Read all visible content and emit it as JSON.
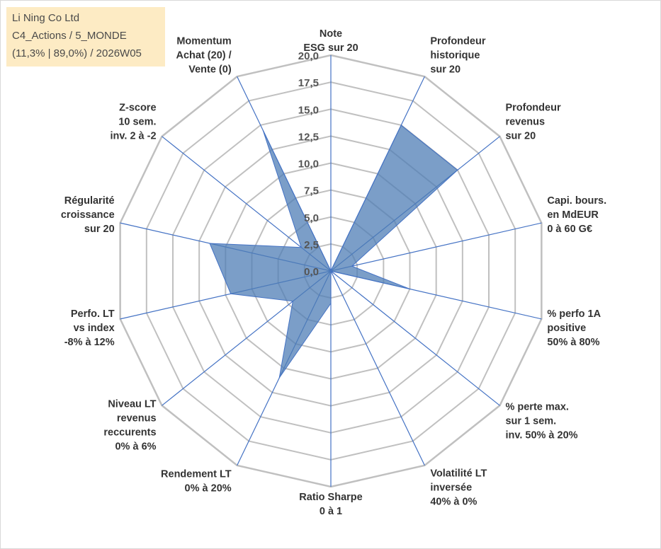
{
  "info_box": {
    "line1": "Li Ning Co Ltd",
    "line2": "C4_Actions / 5_MONDE",
    "line3": "(11,3% | 89,0%) / 2026W05"
  },
  "colors": {
    "grid": "#c0c0c0",
    "spoke": "#4472c4",
    "fill": "#4f7db5",
    "fill_opacity": "0.75",
    "info_bg": "#fdebc4",
    "text": "#333333",
    "tick_text": "#555555"
  },
  "chart_data": {
    "type": "radar",
    "title": "",
    "rmin": 0,
    "rmax": 20,
    "ticks": [
      "0,0",
      "2,5",
      "5,0",
      "7,5",
      "10,0",
      "12,5",
      "15,0",
      "17,5",
      "20,0"
    ],
    "grid": true,
    "legend": "none",
    "categories": [
      [
        "Note",
        "ESG sur 20"
      ],
      [
        "Profondeur",
        "historique",
        "sur 20"
      ],
      [
        "Profondeur",
        "revenus",
        "sur 20"
      ],
      [
        "Capi. bours.",
        "en MdEUR",
        "0 à 60 G€"
      ],
      [
        "% perfo 1A",
        "positive",
        "50% à 80%"
      ],
      [
        "% perte max.",
        "sur 1 sem.",
        "inv. 50% à 20%"
      ],
      [
        "Volatilité LT",
        "inversée",
        "40% à 0%"
      ],
      [
        "Ratio Sharpe",
        "0 à 1"
      ],
      [
        "Rendement LT",
        "0% à 20%"
      ],
      [
        "Niveau LT",
        "revenus",
        "reccurents",
        "0% à 6%"
      ],
      [
        "Perfo. LT",
        "vs index",
        "-8% à 12%"
      ],
      [
        "Régularité",
        "croissance",
        "sur 20"
      ],
      [
        "Z-score",
        "10 sem.",
        "inv. 2 à -2"
      ],
      [
        "Momentum",
        "Achat (20) /",
        "Vente (0)"
      ]
    ],
    "series": [
      {
        "values": [
          0.0,
          15.0,
          15.0,
          2.0,
          7.5,
          0.0,
          0.0,
          3.0,
          11.0,
          4.5,
          9.5,
          11.5,
          3.5,
          14.5
        ]
      }
    ]
  }
}
